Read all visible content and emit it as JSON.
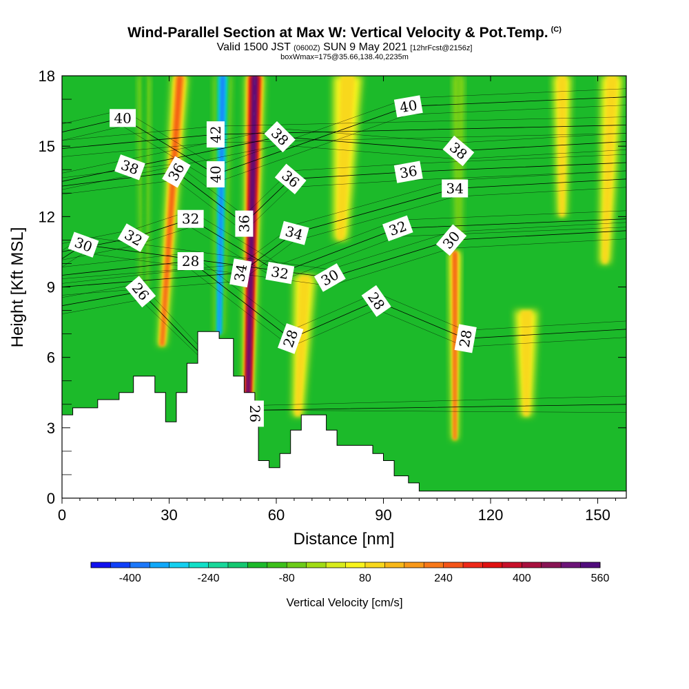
{
  "header": {
    "title": "Wind-Parallel Section at Max W: Vertical Velocity & Pot.Temp.",
    "copyright": "(C)",
    "valid_prefix": "Valid 1500 JST",
    "valid_utc": "(0600Z)",
    "valid_date": "SUN 9 May 2021",
    "forecast": "[12hrFcst@2156z]",
    "box_info": "boxWmax=175@35.66,138.40,2235m"
  },
  "chart_data": {
    "type": "heatmap",
    "xlabel": "Distance [nm]",
    "ylabel": "Height [Kft MSL]",
    "xlim": [
      0,
      158
    ],
    "ylim": [
      0,
      18
    ],
    "x_ticks": [
      "0",
      "30",
      "60",
      "90",
      "120",
      "150"
    ],
    "y_ticks": [
      "0",
      "3",
      "6",
      "9",
      "12",
      "15",
      "18"
    ],
    "colorbar": {
      "label": "Vertical Velocity [cm/s]",
      "tick_labels": [
        "-400",
        "-240",
        "-80",
        "80",
        "240",
        "400",
        "560"
      ],
      "colors": [
        "#1010ee",
        "#1040f8",
        "#1c78fa",
        "#10a8fa",
        "#14d0f0",
        "#10e0c8",
        "#18d89a",
        "#14c870",
        "#1cba2a",
        "#3cc01a",
        "#6ccc18",
        "#a0dc14",
        "#d8ec1c",
        "#f8f41c",
        "#f8d81c",
        "#f8b818",
        "#f89818",
        "#f87818",
        "#f45418",
        "#ee2818",
        "#e01010",
        "#c8102a",
        "#a8103e",
        "#881454",
        "#6c1478",
        "#500c7c"
      ]
    },
    "background_field": "#1cba2a",
    "terrain_profile": [
      [
        0,
        3.55
      ],
      [
        3,
        3.55
      ],
      [
        3,
        3.85
      ],
      [
        10,
        3.85
      ],
      [
        10,
        4.2
      ],
      [
        16,
        4.2
      ],
      [
        16,
        4.5
      ],
      [
        20,
        4.5
      ],
      [
        20,
        5.2
      ],
      [
        26,
        5.2
      ],
      [
        26,
        4.5
      ],
      [
        29,
        4.5
      ],
      [
        29,
        3.25
      ],
      [
        32,
        3.25
      ],
      [
        32,
        4.5
      ],
      [
        35,
        4.5
      ],
      [
        35,
        5.75
      ],
      [
        38,
        5.75
      ],
      [
        38,
        7.1
      ],
      [
        41,
        7.1
      ],
      [
        41,
        7.1
      ],
      [
        44,
        7.1
      ],
      [
        44,
        6.8
      ],
      [
        48,
        6.8
      ],
      [
        48,
        5.2
      ],
      [
        51,
        5.2
      ],
      [
        51,
        4.5
      ],
      [
        54,
        4.5
      ],
      [
        54,
        3.55
      ],
      [
        55,
        3.55
      ],
      [
        55,
        1.6
      ],
      [
        58,
        1.6
      ],
      [
        58,
        1.3
      ],
      [
        61,
        1.3
      ],
      [
        61,
        1.9
      ],
      [
        64,
        1.9
      ],
      [
        64,
        2.9
      ],
      [
        67,
        2.9
      ],
      [
        67,
        3.55
      ],
      [
        74,
        3.55
      ],
      [
        74,
        2.9
      ],
      [
        77,
        2.9
      ],
      [
        77,
        2.25
      ],
      [
        87,
        2.25
      ],
      [
        87,
        1.9
      ],
      [
        90,
        1.9
      ],
      [
        90,
        1.6
      ],
      [
        93,
        1.6
      ],
      [
        93,
        0.95
      ],
      [
        97,
        0.95
      ],
      [
        97,
        0.65
      ],
      [
        100,
        0.65
      ],
      [
        100,
        0.3
      ],
      [
        158,
        0.3
      ]
    ],
    "velocity_features": [
      {
        "kind": "updraft",
        "cm_s": 560,
        "from": [
          52,
          3.5
        ],
        "to": [
          54,
          18
        ],
        "halfwidth": 2.6
      },
      {
        "kind": "updraft",
        "cm_s": 240,
        "from": [
          28,
          6.5
        ],
        "to": [
          33,
          18
        ],
        "halfwidth": 2.2
      },
      {
        "kind": "updraft",
        "cm_s": 240,
        "from": [
          110,
          2.5
        ],
        "to": [
          110,
          10.5
        ],
        "halfwidth": 1.6
      },
      {
        "kind": "updraft",
        "cm_s": 80,
        "from": [
          66,
          3.5
        ],
        "to": [
          68,
          9.5
        ],
        "halfwidth": 3
      },
      {
        "kind": "updraft",
        "cm_s": 80,
        "from": [
          130,
          3.5
        ],
        "to": [
          130,
          8
        ],
        "halfwidth": 3.2
      },
      {
        "kind": "updraft",
        "cm_s": 80,
        "from": [
          152,
          10
        ],
        "to": [
          154,
          18
        ],
        "halfwidth": 3
      },
      {
        "kind": "updraft",
        "cm_s": 80,
        "from": [
          140,
          12
        ],
        "to": [
          140,
          18
        ],
        "halfwidth": 2.5
      },
      {
        "kind": "updraft",
        "cm_s": 80,
        "from": [
          78,
          11
        ],
        "to": [
          80,
          18
        ],
        "halfwidth": 4
      },
      {
        "kind": "downdraft",
        "cm_s": -400,
        "from": [
          44,
          7
        ],
        "to": [
          45,
          18
        ],
        "halfwidth": 2.3
      },
      {
        "kind": "downdraft",
        "cm_s": -160,
        "from": [
          23,
          9
        ],
        "to": [
          23,
          18
        ],
        "halfwidth": 1.6
      },
      {
        "kind": "downdraft",
        "cm_s": -80,
        "from": [
          111,
          11
        ],
        "to": [
          111,
          18
        ],
        "halfwidth": 1.5
      }
    ],
    "isentropes": [
      {
        "theta": "26",
        "label_at": [
          22,
          8.8
        ],
        "label_angle": 50
      },
      {
        "theta": "26",
        "label_at": [
          54,
          3.6
        ],
        "label_angle": 90
      },
      {
        "theta": "28",
        "label_at": [
          36,
          10.1
        ],
        "label_angle": 0
      },
      {
        "theta": "28",
        "label_at": [
          64,
          6.8
        ],
        "label_angle": -70
      },
      {
        "theta": "28",
        "label_at": [
          88,
          8.4
        ],
        "label_angle": 55
      },
      {
        "theta": "28",
        "label_at": [
          113,
          6.8
        ],
        "label_angle": -80
      },
      {
        "theta": "30",
        "label_at": [
          6,
          10.8
        ],
        "label_angle": 20
      },
      {
        "theta": "30",
        "label_at": [
          75,
          9.4
        ],
        "label_angle": -30
      },
      {
        "theta": "30",
        "label_at": [
          109,
          11
        ],
        "label_angle": -50
      },
      {
        "theta": "32",
        "label_at": [
          20,
          11.1
        ],
        "label_angle": 30
      },
      {
        "theta": "32",
        "label_at": [
          36,
          11.9
        ],
        "label_angle": 0
      },
      {
        "theta": "32",
        "label_at": [
          61,
          9.6
        ],
        "label_angle": 10
      },
      {
        "theta": "32",
        "label_at": [
          94,
          11.5
        ],
        "label_angle": -20
      },
      {
        "theta": "34",
        "label_at": [
          50,
          9.6
        ],
        "label_angle": -80
      },
      {
        "theta": "34",
        "label_at": [
          65,
          11.3
        ],
        "label_angle": 15
      },
      {
        "theta": "34",
        "label_at": [
          110,
          13.2
        ],
        "label_angle": 0
      },
      {
        "theta": "36",
        "label_at": [
          32,
          13.9
        ],
        "label_angle": -60
      },
      {
        "theta": "36",
        "label_at": [
          51,
          11.7
        ],
        "label_angle": -90
      },
      {
        "theta": "36",
        "label_at": [
          64,
          13.6
        ],
        "label_angle": 40
      },
      {
        "theta": "36",
        "label_at": [
          97,
          13.9
        ],
        "label_angle": -10
      },
      {
        "theta": "38",
        "label_at": [
          19,
          14.1
        ],
        "label_angle": 20
      },
      {
        "theta": "38",
        "label_at": [
          61,
          15.4
        ],
        "label_angle": 45
      },
      {
        "theta": "38",
        "label_at": [
          111,
          14.8
        ],
        "label_angle": 40
      },
      {
        "theta": "40",
        "label_at": [
          17,
          16.2
        ],
        "label_angle": 0
      },
      {
        "theta": "40",
        "label_at": [
          43,
          13.8
        ],
        "label_angle": -90
      },
      {
        "theta": "40",
        "label_at": [
          97,
          16.7
        ],
        "label_angle": -10
      },
      {
        "theta": "42",
        "label_at": [
          43,
          15.5
        ],
        "label_angle": -90
      }
    ]
  }
}
